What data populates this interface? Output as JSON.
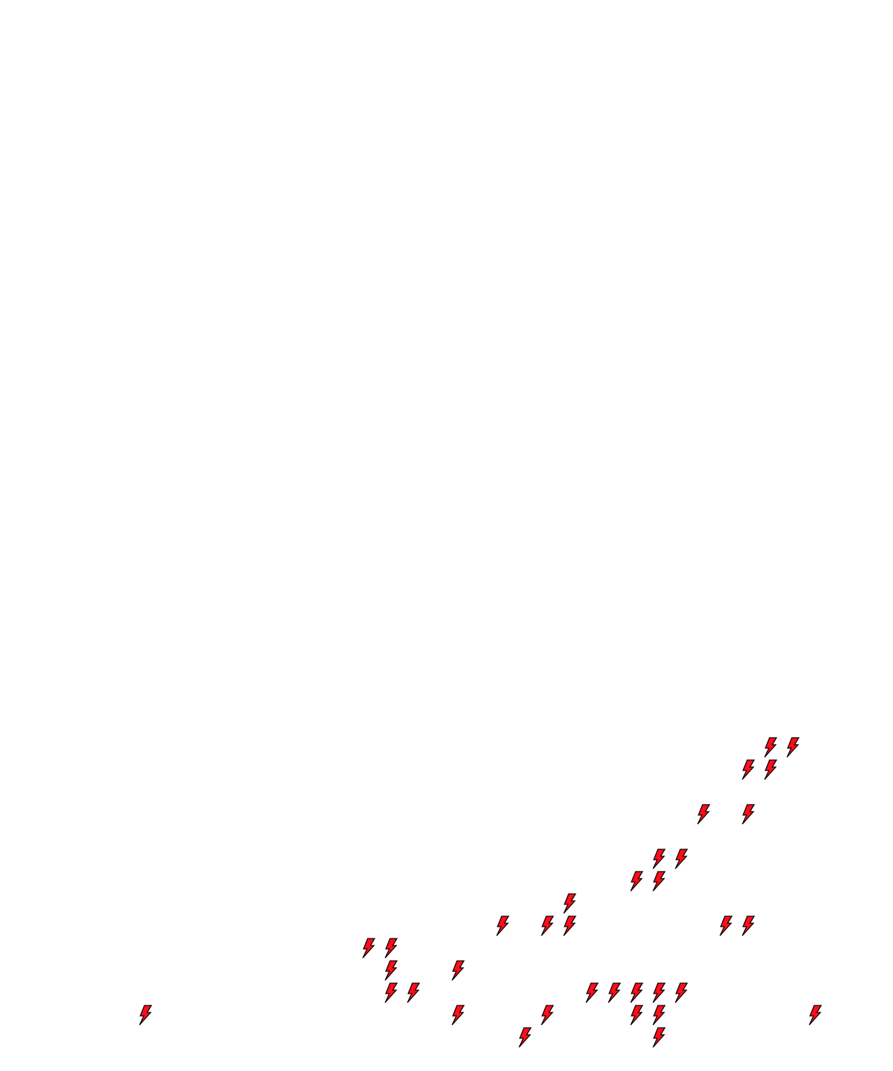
{
  "board": {
    "background": "#ffffff",
    "item_icon": "lightning-bolt-icon",
    "item_fill": "#ff0d1a",
    "item_stroke": "#000000"
  }
}
